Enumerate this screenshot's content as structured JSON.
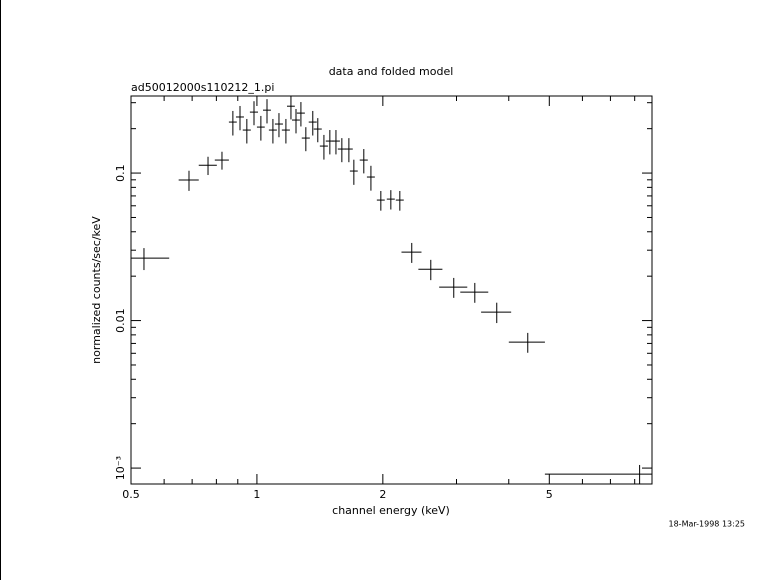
{
  "chart_data": {
    "type": "scatter",
    "title": "data and folded model",
    "subtitle": "ad50012000s110212_1.pi",
    "x_label": "channel energy (keV)",
    "y_label": "normalized counts/sec/keV",
    "timestamp": "18-Mar-1998 13:25",
    "xscale": "log",
    "yscale": "log",
    "xlim": [
      0.5,
      8.8
    ],
    "ylim": [
      0.00078,
      0.333
    ],
    "xticks": [
      0.5,
      1,
      2,
      5
    ],
    "xminorticks": [
      0.6,
      0.7,
      0.8,
      0.9,
      3,
      4,
      6,
      7,
      8
    ],
    "yticks": [
      0.1,
      0.01,
      {
        "value": 0.001,
        "label": "10⁻³"
      }
    ],
    "yminorticks": [
      0.002,
      0.003,
      0.004,
      0.005,
      0.006,
      0.007,
      0.008,
      0.009,
      0.02,
      0.03,
      0.04,
      0.05,
      0.06,
      0.07,
      0.08,
      0.09,
      0.2,
      0.3
    ],
    "color": "#000000",
    "x": [
      0.537,
      0.688,
      0.764,
      0.825,
      0.876,
      0.911,
      0.946,
      0.984,
      1.022,
      1.057,
      1.092,
      1.129,
      1.173,
      1.206,
      1.24,
      1.274,
      1.309,
      1.36,
      1.398,
      1.446,
      1.494,
      1.545,
      1.596,
      1.659,
      1.705,
      1.801,
      1.873,
      1.978,
      2.09,
      2.196,
      2.345,
      2.604,
      2.955,
      3.318,
      3.744,
      4.441,
      8.22
    ],
    "xerr": [
      0.08,
      0.038,
      0.038,
      0.032,
      0.019,
      0.02,
      0.021,
      0.022,
      0.022,
      0.023,
      0.024,
      0.025,
      0.026,
      0.026,
      0.027,
      0.028,
      0.029,
      0.03,
      0.031,
      0.032,
      0.033,
      0.034,
      0.035,
      0.036,
      0.037,
      0.04,
      0.041,
      0.043,
      0.046,
      0.048,
      0.129,
      0.172,
      0.228,
      0.255,
      0.309,
      0.44,
      3.34
    ],
    "values": [
      0.0265,
      0.0897,
      0.113,
      0.1225,
      0.2217,
      0.24,
      0.1957,
      0.259,
      0.205,
      0.267,
      0.1957,
      0.215,
      0.1957,
      0.284,
      0.2288,
      0.255,
      0.1727,
      0.2217,
      0.1988,
      0.1524,
      0.1648,
      0.1648,
      0.1455,
      0.1455,
      0.1032,
      0.1225,
      0.094,
      0.0656,
      0.0666,
      0.0656,
      0.0291,
      0.0223,
      0.01686,
      0.0156,
      0.01142,
      0.00715,
      0.00091
    ],
    "yerr": [
      0.0045,
      0.014,
      0.016,
      0.017,
      0.042,
      0.045,
      0.037,
      0.048,
      0.039,
      0.05,
      0.037,
      0.04,
      0.037,
      0.053,
      0.043,
      0.048,
      0.032,
      0.042,
      0.037,
      0.029,
      0.031,
      0.031,
      0.027,
      0.027,
      0.02,
      0.023,
      0.018,
      0.01,
      0.01,
      0.01,
      0.0045,
      0.0035,
      0.0026,
      0.0024,
      0.0018,
      0.0011,
      0.00014
    ]
  }
}
